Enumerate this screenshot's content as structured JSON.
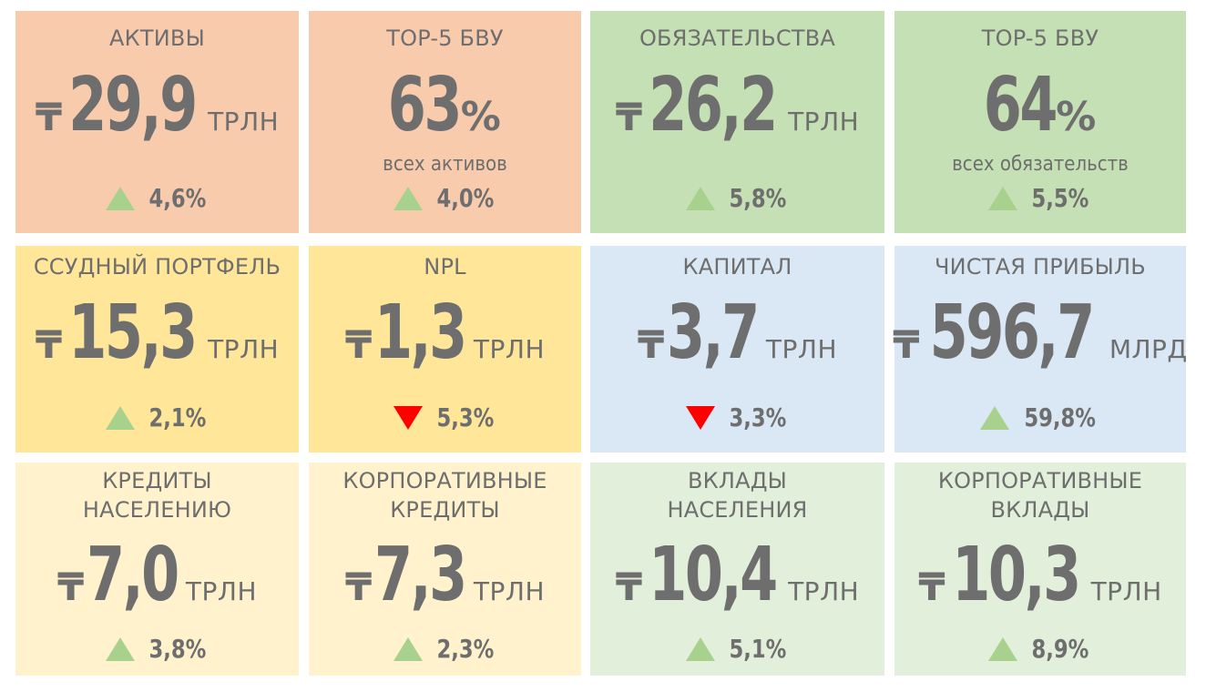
{
  "colors": {
    "salmon": "#f8cbad",
    "green": "#c5e0b4",
    "yellow": "#ffe699",
    "blue": "#dae8f5",
    "light_yellow": "#fff2cc",
    "light_green": "#e2efda",
    "text": "#6e6e6e",
    "arrow_up": "#a9d18e",
    "arrow_down": "#ff0000"
  },
  "currency_symbol": "₸",
  "cards": [
    {
      "title": "АКТИВЫ",
      "value": "29,9",
      "unit": "ТРЛН",
      "change": "4,6%",
      "direction": "up"
    },
    {
      "title": "TOP-5 БВУ",
      "value": "63",
      "percent_sign": "%",
      "subtitle": "всех активов",
      "change": "4,0%",
      "direction": "up"
    },
    {
      "title": "ОБЯЗАТЕЛЬСТВА",
      "value": "26,2",
      "unit": "ТРЛН",
      "change": "5,8%",
      "direction": "up"
    },
    {
      "title": "TOP-5 БВУ",
      "value": "64",
      "percent_sign": "%",
      "subtitle": "всех обязательств",
      "change": "5,5%",
      "direction": "up"
    },
    {
      "title": "ССУДНЫЙ ПОРТФЕЛЬ",
      "value": "15,3",
      "unit": "ТРЛН",
      "change": "2,1%",
      "direction": "up"
    },
    {
      "title": "NPL",
      "value": "1,3",
      "unit": "ТРЛН",
      "change": "5,3%",
      "direction": "down"
    },
    {
      "title": "КАПИТАЛ",
      "value": "3,7",
      "unit": "ТРЛН",
      "change": "3,3%",
      "direction": "down"
    },
    {
      "title": "ЧИСТАЯ ПРИБЫЛЬ",
      "value": "596,7",
      "unit": "МЛРД",
      "change": "59,8%",
      "direction": "up"
    },
    {
      "title_line1": "КРЕДИТЫ",
      "title_line2": "НАСЕЛЕНИЮ",
      "value": "7,0",
      "unit": "ТРЛН",
      "change": "3,8%",
      "direction": "up"
    },
    {
      "title_line1": "КОРПОРАТИВНЫЕ",
      "title_line2": "КРЕДИТЫ",
      "value": "7,3",
      "unit": "ТРЛН",
      "change": "2,3%",
      "direction": "up"
    },
    {
      "title_line1": "ВКЛАДЫ",
      "title_line2": "НАСЕЛЕНИЯ",
      "value": "10,4",
      "unit": "ТРЛН",
      "change": "5,1%",
      "direction": "up"
    },
    {
      "title_line1": "КОРПОРАТИВНЫЕ",
      "title_line2": "ВКЛАДЫ",
      "value": "10,3",
      "unit": "ТРЛН",
      "change": "8,9%",
      "direction": "up"
    }
  ]
}
